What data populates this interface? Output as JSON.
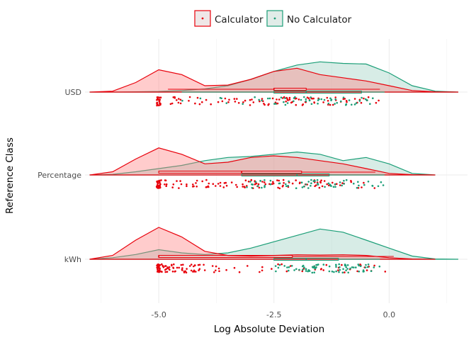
{
  "chart_data": {
    "type": "raincloud",
    "xlabel": "Log Absolute Deviation",
    "ylabel": "Reference Class",
    "xlim": [
      -6.6,
      1.7
    ],
    "x_ticks": [
      -5.0,
      -2.5,
      0.0
    ],
    "x_tick_labels": [
      "-5.0",
      "-2.5",
      "0.0"
    ],
    "categories": [
      "USD",
      "Percentage",
      "kWh"
    ],
    "legend": {
      "position": "top",
      "entries": [
        {
          "name": "Calculator",
          "color": "#E8000B"
        },
        {
          "name": "No Calculator",
          "color": "#1B9E77"
        }
      ]
    },
    "grid": true,
    "series": [
      {
        "name": "Calculator",
        "color": "#E8000B",
        "fill": "#FF7F7F",
        "groups": [
          {
            "category": "USD",
            "density": [
              [
                -6.5,
                0.0
              ],
              [
                -6.0,
                0.03
              ],
              [
                -5.5,
                0.3
              ],
              [
                -5.0,
                0.7
              ],
              [
                -4.5,
                0.55
              ],
              [
                -4.0,
                0.2
              ],
              [
                -3.5,
                0.22
              ],
              [
                -3.0,
                0.4
              ],
              [
                -2.5,
                0.65
              ],
              [
                -2.0,
                0.75
              ],
              [
                -1.5,
                0.55
              ],
              [
                -1.0,
                0.45
              ],
              [
                -0.5,
                0.35
              ],
              [
                0.0,
                0.2
              ],
              [
                0.5,
                0.05
              ],
              [
                1.0,
                0.01
              ],
              [
                1.5,
                0.0
              ]
            ],
            "box": {
              "min": -4.8,
              "q1": -2.5,
              "median": -2.5,
              "q3": -1.8,
              "max": -0.2
            }
          },
          {
            "category": "Percentage",
            "density": [
              [
                -6.5,
                0.0
              ],
              [
                -6.0,
                0.1
              ],
              [
                -5.5,
                0.5
              ],
              [
                -5.0,
                0.85
              ],
              [
                -4.5,
                0.65
              ],
              [
                -4.0,
                0.35
              ],
              [
                -3.5,
                0.4
              ],
              [
                -3.0,
                0.55
              ],
              [
                -2.5,
                0.6
              ],
              [
                -2.0,
                0.55
              ],
              [
                -1.5,
                0.45
              ],
              [
                -1.0,
                0.35
              ],
              [
                -0.5,
                0.2
              ],
              [
                0.0,
                0.05
              ],
              [
                0.5,
                0.01
              ],
              [
                1.0,
                0.0
              ]
            ],
            "box": {
              "min": -5.0,
              "q1": -5.0,
              "median": -3.2,
              "q3": -1.9,
              "max": -0.3
            }
          },
          {
            "category": "kWh",
            "density": [
              [
                -6.5,
                0.0
              ],
              [
                -6.0,
                0.12
              ],
              [
                -5.5,
                0.6
              ],
              [
                -5.0,
                1.0
              ],
              [
                -4.5,
                0.7
              ],
              [
                -4.0,
                0.25
              ],
              [
                -3.5,
                0.12
              ],
              [
                -3.0,
                0.1
              ],
              [
                -2.5,
                0.12
              ],
              [
                -2.0,
                0.14
              ],
              [
                -1.5,
                0.13
              ],
              [
                -1.0,
                0.14
              ],
              [
                -0.5,
                0.12
              ],
              [
                0.0,
                0.05
              ],
              [
                0.5,
                0.01
              ],
              [
                1.0,
                0.0
              ]
            ],
            "box": {
              "min": -5.0,
              "q1": -5.0,
              "median": -5.0,
              "q3": -2.1,
              "max": 0.1
            }
          }
        ]
      },
      {
        "name": "No Calculator",
        "color": "#1B9E77",
        "fill": "#9CCFC0",
        "groups": [
          {
            "category": "USD",
            "density": [
              [
                -6.5,
                0.0
              ],
              [
                -6.0,
                0.0
              ],
              [
                -5.5,
                0.01
              ],
              [
                -5.0,
                0.02
              ],
              [
                -4.5,
                0.05
              ],
              [
                -4.0,
                0.1
              ],
              [
                -3.5,
                0.2
              ],
              [
                -3.0,
                0.4
              ],
              [
                -2.5,
                0.65
              ],
              [
                -2.0,
                0.85
              ],
              [
                -1.5,
                0.95
              ],
              [
                -1.0,
                0.9
              ],
              [
                -0.5,
                0.88
              ],
              [
                0.0,
                0.6
              ],
              [
                0.5,
                0.2
              ],
              [
                1.0,
                0.03
              ],
              [
                1.5,
                0.0
              ]
            ],
            "box": {
              "min": -4.5,
              "q1": -2.5,
              "median": -1.8,
              "q3": -0.6,
              "max": -0.1
            }
          },
          {
            "category": "Percentage",
            "density": [
              [
                -6.5,
                0.0
              ],
              [
                -6.0,
                0.02
              ],
              [
                -5.5,
                0.1
              ],
              [
                -5.0,
                0.2
              ],
              [
                -4.5,
                0.3
              ],
              [
                -4.0,
                0.45
              ],
              [
                -3.5,
                0.55
              ],
              [
                -3.0,
                0.58
              ],
              [
                -2.5,
                0.65
              ],
              [
                -2.0,
                0.72
              ],
              [
                -1.5,
                0.65
              ],
              [
                -1.0,
                0.45
              ],
              [
                -0.5,
                0.55
              ],
              [
                0.0,
                0.35
              ],
              [
                0.5,
                0.05
              ],
              [
                1.0,
                0.0
              ]
            ],
            "box": {
              "min": -3.2,
              "q1": -3.2,
              "median": -2.0,
              "q3": -1.3,
              "max": -0.1
            }
          },
          {
            "category": "kWh",
            "density": [
              [
                -6.5,
                0.0
              ],
              [
                -6.0,
                0.05
              ],
              [
                -5.5,
                0.15
              ],
              [
                -5.0,
                0.3
              ],
              [
                -4.5,
                0.2
              ],
              [
                -4.0,
                0.15
              ],
              [
                -3.5,
                0.2
              ],
              [
                -3.0,
                0.35
              ],
              [
                -2.5,
                0.55
              ],
              [
                -2.0,
                0.75
              ],
              [
                -1.5,
                0.95
              ],
              [
                -1.0,
                0.85
              ],
              [
                -0.5,
                0.6
              ],
              [
                0.0,
                0.35
              ],
              [
                0.5,
                0.1
              ],
              [
                1.0,
                0.01
              ],
              [
                1.5,
                0.0
              ]
            ],
            "box": {
              "min": -2.5,
              "q1": -2.5,
              "median": -1.8,
              "q3": -1.1,
              "max": -0.2
            }
          }
        ]
      }
    ]
  }
}
